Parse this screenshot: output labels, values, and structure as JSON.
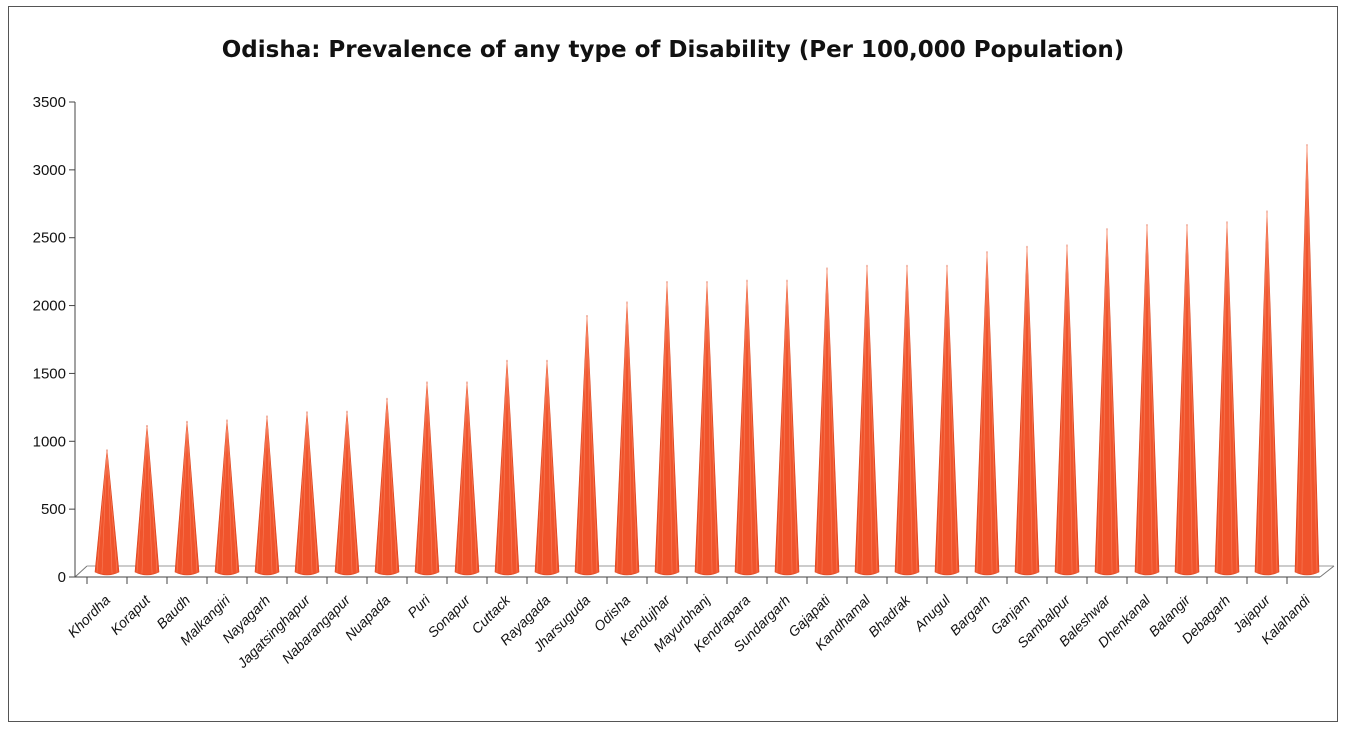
{
  "chart_data": {
    "type": "bar",
    "title": "Odisha: Prevalence of any type of Disability (Per 100,000 Population)",
    "xlabel": "",
    "ylabel": "",
    "ylim": [
      0,
      3500
    ],
    "yticks": [
      0,
      500,
      1000,
      1500,
      2000,
      2500,
      3000,
      3500
    ],
    "grid": false,
    "legend": "none",
    "bar_color": "#f0542c",
    "categories": [
      "Khordha",
      "Koraput",
      "Baudh",
      "Malkangiri",
      "Nayagarh",
      "Jagatsinghapur",
      "Nabarangapur",
      "Nuapada",
      "Puri",
      "Sonapur",
      "Cuttack",
      "Rayagada",
      "Jharsuguda",
      "Odisha",
      "Kendujhar",
      "Mayurbhanj",
      "Kendrapara",
      "Sundargarh",
      "Gajapati",
      "Kandhamal",
      "Bhadrak",
      "Anugul",
      "Bargarh",
      "Ganjam",
      "Sambalpur",
      "Baleshwar",
      "Dhenkanal",
      "Balangir",
      "Debagarh",
      "Jajapur",
      "Kalahandi"
    ],
    "values": [
      940,
      1120,
      1150,
      1160,
      1190,
      1220,
      1225,
      1320,
      1440,
      1440,
      1600,
      1600,
      1930,
      2030,
      2180,
      2180,
      2190,
      2190,
      2280,
      2300,
      2300,
      2300,
      2400,
      2440,
      2450,
      2570,
      2600,
      2600,
      2620,
      2700,
      3190
    ]
  }
}
